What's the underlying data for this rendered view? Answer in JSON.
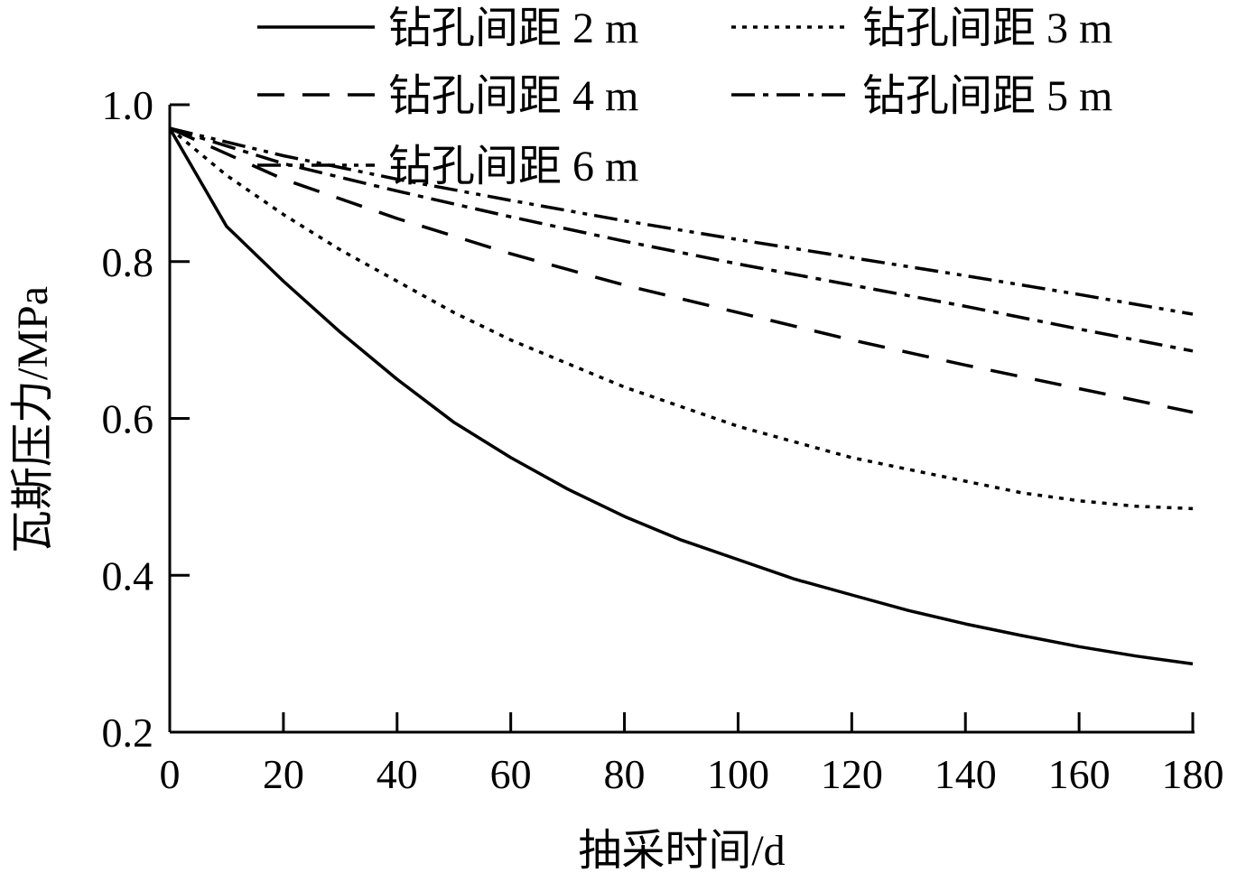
{
  "chart_data": {
    "type": "line",
    "xlabel": "抽采时间/d",
    "ylabel": "瓦斯压力/MPa",
    "xlim": [
      0,
      180
    ],
    "ylim": [
      0.2,
      1.0
    ],
    "x_ticks": [
      "0",
      "20",
      "40",
      "60",
      "80",
      "100",
      "120",
      "140",
      "160",
      "180"
    ],
    "y_ticks": [
      "0.2",
      "0.4",
      "0.6",
      "0.8",
      "1.0"
    ],
    "legend_position": "top",
    "grid": false,
    "series": [
      {
        "name": "钻孔间距 2 m",
        "style": "solid",
        "x": [
          0,
          10,
          20,
          30,
          40,
          50,
          60,
          70,
          80,
          90,
          100,
          110,
          120,
          130,
          140,
          150,
          160,
          170,
          180
        ],
        "y": [
          0.97,
          0.845,
          0.775,
          0.71,
          0.65,
          0.595,
          0.55,
          0.51,
          0.475,
          0.445,
          0.42,
          0.395,
          0.375,
          0.355,
          0.338,
          0.323,
          0.309,
          0.297,
          0.287
        ]
      },
      {
        "name": "钻孔间距 3 m",
        "style": "dotted",
        "x": [
          0,
          10,
          20,
          30,
          40,
          50,
          60,
          70,
          80,
          90,
          100,
          110,
          120,
          130,
          140,
          150,
          160,
          170,
          180
        ],
        "y": [
          0.97,
          0.91,
          0.86,
          0.815,
          0.775,
          0.735,
          0.7,
          0.67,
          0.64,
          0.615,
          0.59,
          0.57,
          0.55,
          0.535,
          0.52,
          0.505,
          0.495,
          0.488,
          0.485
        ]
      },
      {
        "name": "钻孔间距 4 m",
        "style": "dashed",
        "x": [
          0,
          20,
          40,
          60,
          80,
          100,
          120,
          140,
          160,
          180
        ],
        "y": [
          0.97,
          0.905,
          0.855,
          0.81,
          0.77,
          0.735,
          0.7,
          0.668,
          0.638,
          0.608
        ]
      },
      {
        "name": "钻孔间距 5 m",
        "style": "dashdot",
        "x": [
          0,
          20,
          40,
          60,
          80,
          100,
          120,
          140,
          160,
          180
        ],
        "y": [
          0.97,
          0.925,
          0.89,
          0.857,
          0.826,
          0.797,
          0.77,
          0.743,
          0.714,
          0.686
        ]
      },
      {
        "name": "钻孔间距 6 m",
        "style": "dashdotdot",
        "x": [
          0,
          20,
          40,
          60,
          80,
          100,
          120,
          140,
          160,
          180
        ],
        "y": [
          0.97,
          0.935,
          0.905,
          0.878,
          0.852,
          0.828,
          0.805,
          0.782,
          0.758,
          0.733
        ]
      }
    ]
  }
}
